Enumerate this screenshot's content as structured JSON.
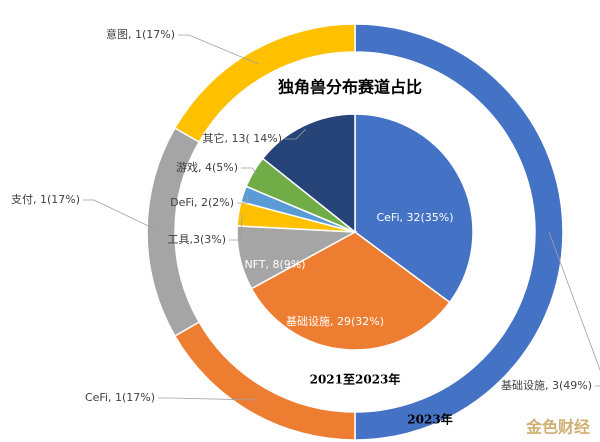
{
  "chart_data": {
    "type": "pie",
    "title": "独角兽分布赛道占比",
    "series": [
      {
        "name": "2023年",
        "values": [
          3,
          1,
          1,
          1
        ],
        "value_labels": [
          "基础设施, 3(49%)",
          "CeFi, 1(17%)",
          "支付, 1(17%)",
          "意图, 1(17%)"
        ],
        "colors": [
          "#4472c4",
          "#ed7d31",
          "#a5a5a5",
          "#ffc000"
        ]
      },
      {
        "name": "2021至2023年",
        "values": [
          32,
          29,
          8,
          3,
          2,
          4,
          13
        ],
        "value_labels": [
          "CeFi, 32(35%)",
          "基础设施, 29(32%)",
          "NFT, 8(9%)",
          "工具,3(3%)",
          "DeFi, 2(2%)",
          "游戏, 4(5%)",
          "其它, 13( 14%)"
        ],
        "colors": [
          "#4472c4",
          "#ed7d31",
          "#a5a5a5",
          "#ffc000",
          "#5b9bd5",
          "#70ad47",
          "#264478"
        ]
      }
    ],
    "watermark": "金色财经"
  }
}
